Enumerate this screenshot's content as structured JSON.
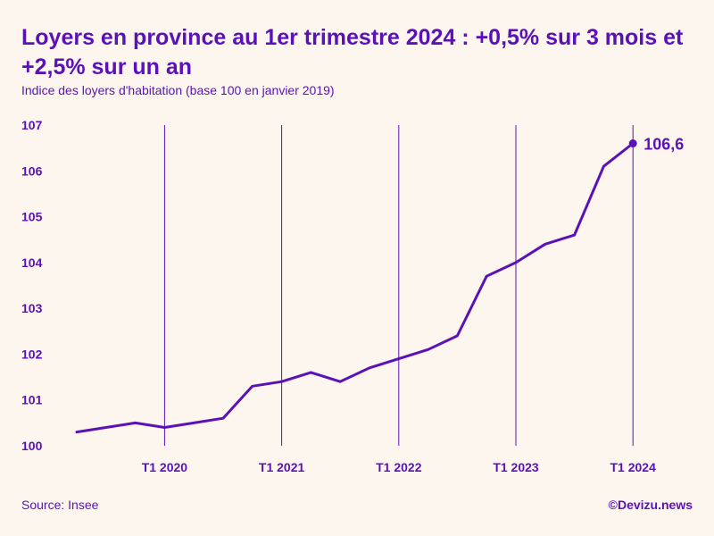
{
  "colors": {
    "background": "#fdf6ee",
    "accent": "#5a12b8"
  },
  "chart_data": {
    "type": "line",
    "title": "Loyers en province au 1er trimestre 2024 : +0,5% sur 3 mois et +2,5% sur un an",
    "subtitle": "Indice des loyers d'habitation (base 100 en janvier 2019)",
    "xlabel": "",
    "ylabel": "",
    "ylim": [
      100,
      107
    ],
    "yticks": [
      "100",
      "101",
      "102",
      "103",
      "104",
      "105",
      "106",
      "107"
    ],
    "xticks": [
      {
        "label": "T1 2020",
        "index": 3
      },
      {
        "label": "T1 2021",
        "index": 7
      },
      {
        "label": "T1 2022",
        "index": 11
      },
      {
        "label": "T1 2023",
        "index": 15
      },
      {
        "label": "T1 2024",
        "index": 19
      }
    ],
    "grid": "vertical",
    "x": [
      "T2 2019",
      "T3 2019",
      "T4 2019",
      "T1 2020",
      "T2 2020",
      "T3 2020",
      "T4 2020",
      "T1 2021",
      "T2 2021",
      "T3 2021",
      "T4 2021",
      "T1 2022",
      "T2 2022",
      "T3 2022",
      "T4 2022",
      "T1 2023",
      "T2 2023",
      "T3 2023",
      "T4 2023",
      "T1 2024"
    ],
    "series": [
      {
        "name": "Indice des loyers d'habitation",
        "values": [
          100.3,
          100.4,
          100.5,
          100.4,
          100.5,
          100.6,
          101.3,
          101.4,
          101.6,
          101.4,
          101.7,
          101.9,
          102.1,
          102.4,
          103.7,
          104.0,
          104.4,
          104.6,
          106.1,
          106.6
        ]
      }
    ],
    "last_value_label": "106,6"
  },
  "footer": {
    "source": "Source: Insee",
    "credit": "©Devizu.news"
  }
}
